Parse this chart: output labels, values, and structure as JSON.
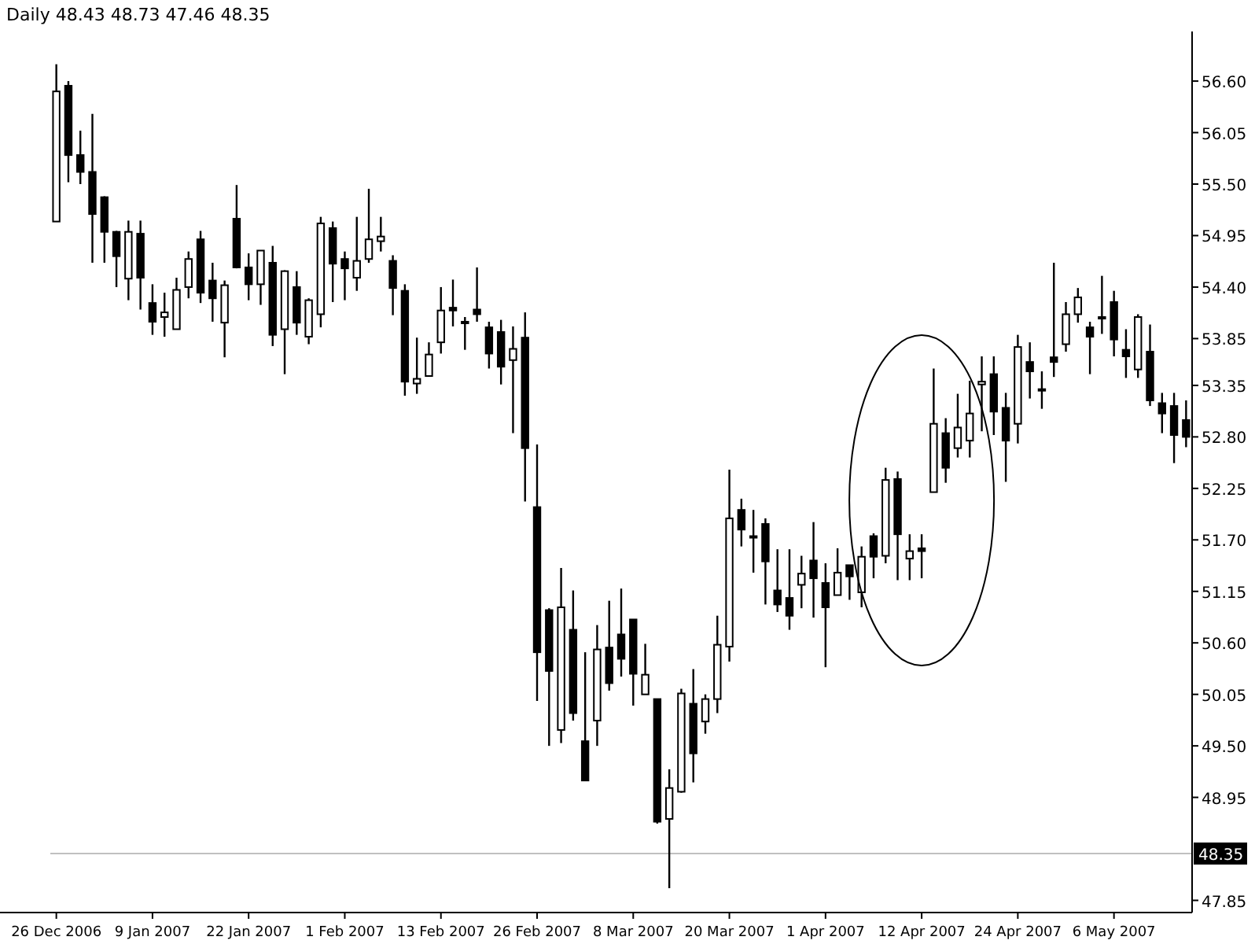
{
  "chart_data": {
    "type": "candlestick",
    "title": "Daily 48.43 48.73 47.46 48.35",
    "categories": [
      "26 Dec 2006",
      null,
      null,
      null,
      null,
      null,
      null,
      null,
      "9 Jan 2007",
      null,
      null,
      null,
      null,
      null,
      null,
      null,
      "22 Jan 2007",
      null,
      null,
      null,
      null,
      null,
      null,
      null,
      "1 Feb 2007",
      null,
      null,
      null,
      null,
      null,
      null,
      null,
      "13 Feb 2007",
      null,
      null,
      null,
      null,
      null,
      null,
      null,
      "26 Feb 2007",
      null,
      null,
      null,
      null,
      null,
      null,
      null,
      "8 Mar 2007",
      null,
      null,
      null,
      null,
      null,
      null,
      null,
      "20 Mar 2007",
      null,
      null,
      null,
      null,
      null,
      null,
      null,
      "1 Apr 2007",
      null,
      null,
      null,
      null,
      null,
      null,
      null,
      "12 Apr 2007",
      null,
      null,
      null,
      null,
      null,
      null,
      null,
      "24 Apr 2007",
      null,
      null,
      null,
      null,
      null,
      null,
      null,
      "6 May 2007",
      null,
      null,
      null,
      null,
      null,
      null
    ],
    "ohlc": [
      [
        55.1,
        56.78,
        55.1,
        56.49
      ],
      [
        56.55,
        56.6,
        55.52,
        55.81
      ],
      [
        55.81,
        56.07,
        55.5,
        55.63
      ],
      [
        55.63,
        56.25,
        54.66,
        55.18
      ],
      [
        55.36,
        55.37,
        54.66,
        54.99
      ],
      [
        54.99,
        55.0,
        54.4,
        54.73
      ],
      [
        54.49,
        55.11,
        54.26,
        54.99
      ],
      [
        54.97,
        55.11,
        54.16,
        54.5
      ],
      [
        54.23,
        54.43,
        53.89,
        54.03
      ],
      [
        54.08,
        54.34,
        53.87,
        54.13
      ],
      [
        53.95,
        54.5,
        53.95,
        54.37
      ],
      [
        54.4,
        54.78,
        54.28,
        54.7
      ],
      [
        54.91,
        55.0,
        54.23,
        54.34
      ],
      [
        54.47,
        54.66,
        54.03,
        54.28
      ],
      [
        54.02,
        54.47,
        53.65,
        54.42
      ],
      [
        55.13,
        55.49,
        54.6,
        54.61
      ],
      [
        54.61,
        54.76,
        54.26,
        54.43
      ],
      [
        54.43,
        54.79,
        54.21,
        54.79
      ],
      [
        54.66,
        54.84,
        53.77,
        53.89
      ],
      [
        53.95,
        54.58,
        53.47,
        54.57
      ],
      [
        54.4,
        54.57,
        53.89,
        54.02
      ],
      [
        53.87,
        54.28,
        53.79,
        54.26
      ],
      [
        54.11,
        55.15,
        53.97,
        55.08
      ],
      [
        55.03,
        55.1,
        54.24,
        54.65
      ],
      [
        54.7,
        54.78,
        54.26,
        54.6
      ],
      [
        54.5,
        55.15,
        54.36,
        54.68
      ],
      [
        54.7,
        55.45,
        54.66,
        54.91
      ],
      [
        54.89,
        55.15,
        54.78,
        54.94
      ],
      [
        54.68,
        54.74,
        54.1,
        54.39
      ],
      [
        54.36,
        54.43,
        53.24,
        53.39
      ],
      [
        53.37,
        53.86,
        53.26,
        53.42
      ],
      [
        53.45,
        53.81,
        53.45,
        53.68
      ],
      [
        53.81,
        54.4,
        53.69,
        54.15
      ],
      [
        54.18,
        54.48,
        53.98,
        54.15
      ],
      [
        54.03,
        54.08,
        53.73,
        54.03
      ],
      [
        54.16,
        54.61,
        54.03,
        54.11
      ],
      [
        53.97,
        54.03,
        53.53,
        53.69
      ],
      [
        53.92,
        54.05,
        53.36,
        53.55
      ],
      [
        53.62,
        53.98,
        52.84,
        53.74
      ],
      [
        53.86,
        54.13,
        52.11,
        52.68
      ],
      [
        52.05,
        52.72,
        49.98,
        50.5
      ],
      [
        50.95,
        50.97,
        49.5,
        50.3
      ],
      [
        49.67,
        51.4,
        49.53,
        50.98
      ],
      [
        50.74,
        51.16,
        49.77,
        49.85
      ],
      [
        49.55,
        50.5,
        49.13,
        49.13
      ],
      [
        49.77,
        50.79,
        49.5,
        50.53
      ],
      [
        50.55,
        51.05,
        50.09,
        50.17
      ],
      [
        50.69,
        51.18,
        50.24,
        50.43
      ],
      [
        50.85,
        50.85,
        49.93,
        50.27
      ],
      [
        50.05,
        50.59,
        50.05,
        50.26
      ],
      [
        50.0,
        50.0,
        48.67,
        48.69
      ],
      [
        48.72,
        49.25,
        47.98,
        49.05
      ],
      [
        49.01,
        50.11,
        49.0,
        50.06
      ],
      [
        49.95,
        50.32,
        49.11,
        49.42
      ],
      [
        49.76,
        50.05,
        49.63,
        50.0
      ],
      [
        50.0,
        50.89,
        49.85,
        50.58
      ],
      [
        50.56,
        52.45,
        50.4,
        51.93
      ],
      [
        52.02,
        52.14,
        51.63,
        51.81
      ],
      [
        51.74,
        52.02,
        51.35,
        51.74
      ],
      [
        51.87,
        51.93,
        51.01,
        51.47
      ],
      [
        51.16,
        51.6,
        50.93,
        51.01
      ],
      [
        51.08,
        51.6,
        50.74,
        50.89
      ],
      [
        51.22,
        51.53,
        50.97,
        51.34
      ],
      [
        51.48,
        51.89,
        50.87,
        51.29
      ],
      [
        51.24,
        51.45,
        50.34,
        50.98
      ],
      [
        51.11,
        51.61,
        51.11,
        51.35
      ],
      [
        51.43,
        51.43,
        51.06,
        51.31
      ],
      [
        51.14,
        51.63,
        50.98,
        51.52
      ],
      [
        51.74,
        51.77,
        51.29,
        51.52
      ],
      [
        51.53,
        52.47,
        51.45,
        52.34
      ],
      [
        52.35,
        52.43,
        51.27,
        51.76
      ],
      [
        51.5,
        51.76,
        51.27,
        51.58
      ],
      [
        51.61,
        51.76,
        51.29,
        51.58
      ],
      [
        52.21,
        53.53,
        52.21,
        52.94
      ],
      [
        52.84,
        53.0,
        52.31,
        52.47
      ],
      [
        52.68,
        53.26,
        52.58,
        52.9
      ],
      [
        52.76,
        53.4,
        52.58,
        53.05
      ],
      [
        53.36,
        53.66,
        52.86,
        53.39
      ],
      [
        53.47,
        53.66,
        52.82,
        53.07
      ],
      [
        53.11,
        53.27,
        52.32,
        52.76
      ],
      [
        52.94,
        53.89,
        52.73,
        53.76
      ],
      [
        53.6,
        53.81,
        53.21,
        53.5
      ],
      [
        53.31,
        53.5,
        53.1,
        53.31
      ],
      [
        53.65,
        54.66,
        53.44,
        53.6
      ],
      [
        53.79,
        54.24,
        53.71,
        54.11
      ],
      [
        54.11,
        54.39,
        54.02,
        54.29
      ],
      [
        53.97,
        54.03,
        53.47,
        53.87
      ],
      [
        54.08,
        54.52,
        53.9,
        54.08
      ],
      [
        54.24,
        54.36,
        53.66,
        53.84
      ],
      [
        53.73,
        53.95,
        53.43,
        53.66
      ],
      [
        53.52,
        54.11,
        53.43,
        54.08
      ],
      [
        53.71,
        54.0,
        53.13,
        53.19
      ],
      [
        53.16,
        53.27,
        52.84,
        53.05
      ],
      [
        53.13,
        53.27,
        52.52,
        52.82
      ],
      [
        52.98,
        53.19,
        52.69,
        52.8
      ]
    ],
    "ylim": [
      47.72,
      57.13
    ],
    "yticks": [
      {
        "value": 56.6,
        "label": "56.60"
      },
      {
        "value": 56.05,
        "label": "56.05"
      },
      {
        "value": 55.5,
        "label": "55.50"
      },
      {
        "value": 54.95,
        "label": "54.95"
      },
      {
        "value": 54.4,
        "label": "54.40"
      },
      {
        "value": 53.85,
        "label": "53.85"
      },
      {
        "value": 53.35,
        "label": "53.35"
      },
      {
        "value": 52.8,
        "label": "52.80"
      },
      {
        "value": 52.25,
        "label": "52.25"
      },
      {
        "value": 51.7,
        "label": "51.70"
      },
      {
        "value": 51.15,
        "label": "51.15"
      },
      {
        "value": 50.6,
        "label": "50.60"
      },
      {
        "value": 50.05,
        "label": "50.05"
      },
      {
        "value": 49.5,
        "label": "49.50"
      },
      {
        "value": 48.95,
        "label": "48.95"
      },
      {
        "value": 47.85,
        "label": "47.85"
      }
    ],
    "ref_lines": [
      {
        "axis": "y",
        "value": 48.35,
        "label": "48.35",
        "color": "#c0c0c0"
      }
    ]
  }
}
